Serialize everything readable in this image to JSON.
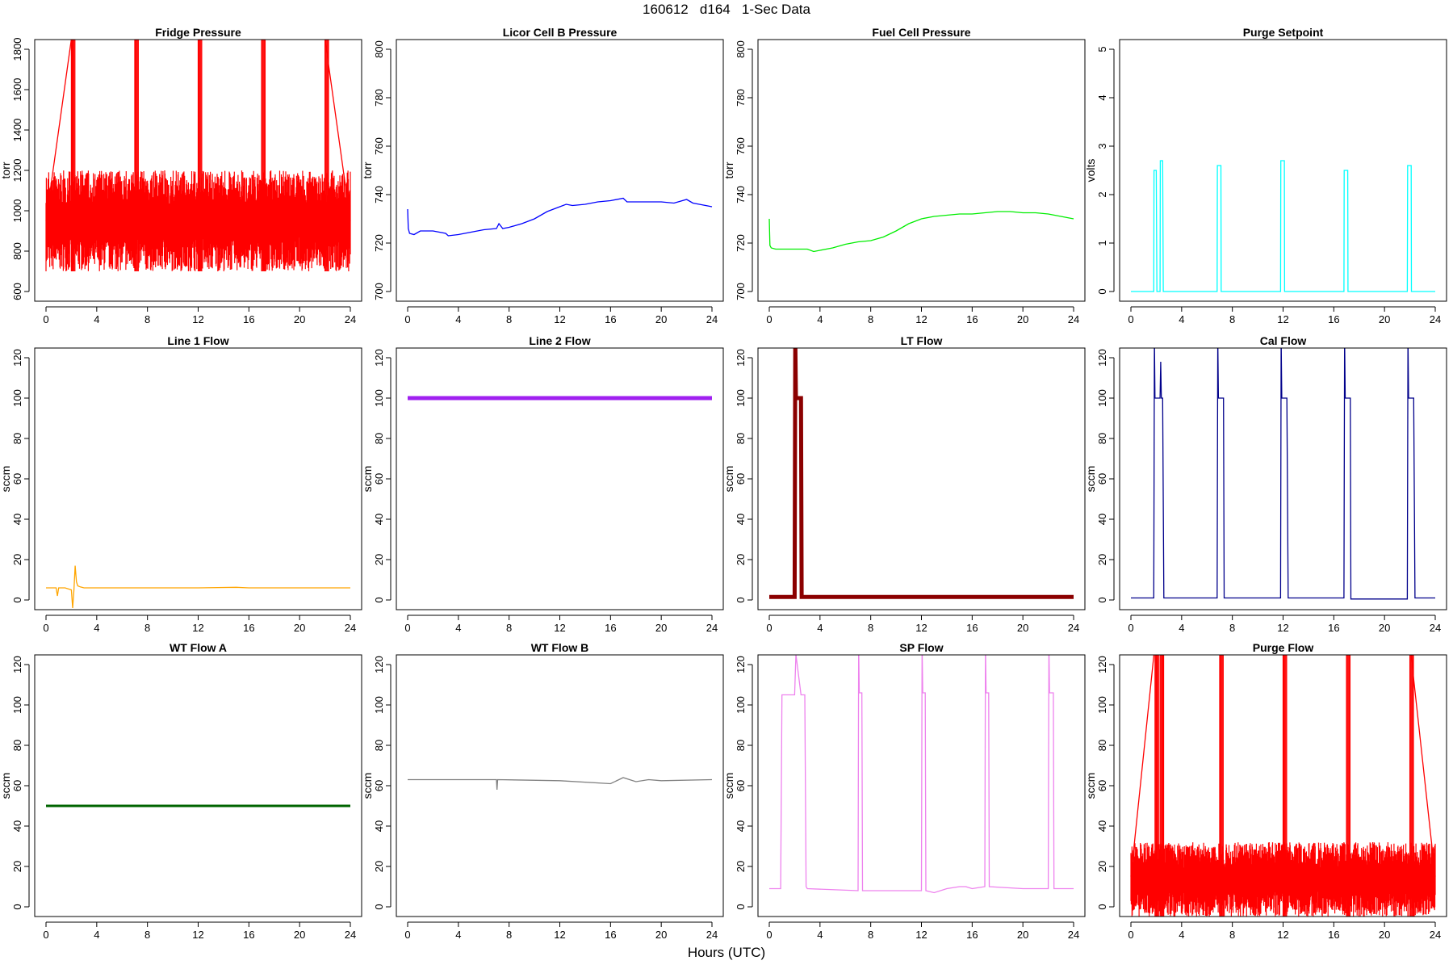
{
  "figure": {
    "title": "160612   d164   1-Sec Data",
    "xlabel": "Hours (UTC)"
  },
  "chart_data": [
    {
      "type": "line",
      "title": "Fridge Pressure",
      "ylabel": "torr",
      "color": "#ff0000",
      "xlim": [
        0,
        24
      ],
      "ylim": [
        600,
        1800
      ],
      "xticks": [
        0,
        4,
        8,
        12,
        16,
        20,
        24
      ],
      "yticks": [
        600,
        800,
        1000,
        1200,
        1400,
        1600,
        1800
      ],
      "pattern": {
        "kind": "noise",
        "low": 700,
        "high": 1200,
        "xs": [
          0,
          24
        ],
        "spikes": {
          "at": [
            2,
            7,
            12,
            17,
            22
          ],
          "peak": 1850
        }
      },
      "series": [
        {
          "x": [
            0,
            2,
            2.3,
            7,
            12,
            17,
            22,
            24
          ],
          "values": [
            950,
            1850,
            1850,
            1850,
            1850,
            1850,
            1850,
            950
          ]
        }
      ]
    },
    {
      "type": "line",
      "title": "Licor Cell B Pressure",
      "ylabel": "torr",
      "color": "#0000ff",
      "xlim": [
        0,
        24
      ],
      "ylim": [
        700,
        800
      ],
      "xticks": [
        0,
        4,
        8,
        12,
        16,
        20,
        24
      ],
      "yticks": [
        700,
        720,
        740,
        760,
        780,
        800
      ],
      "series": [
        {
          "x": [
            0,
            0.05,
            0.15,
            0.5,
            1,
            2,
            3,
            3.2,
            4,
            5,
            6,
            7,
            7.2,
            7.5,
            8,
            9,
            10,
            11,
            12,
            12.5,
            13,
            14,
            15,
            16,
            17,
            17.3,
            18,
            19,
            20,
            21,
            22,
            22.5,
            23,
            24
          ],
          "values": [
            734,
            726,
            724,
            723.5,
            725,
            725,
            724,
            723,
            723.5,
            724.5,
            725.5,
            726,
            728,
            726,
            726.5,
            728,
            730,
            733,
            735,
            736,
            735.5,
            736,
            737,
            737.5,
            738.5,
            737,
            737,
            737,
            737,
            736.5,
            738,
            736.5,
            736,
            735
          ]
        }
      ]
    },
    {
      "type": "line",
      "title": "Fuel Cell Pressure",
      "ylabel": "torr",
      "color": "#00ee00",
      "xlim": [
        0,
        24
      ],
      "ylim": [
        700,
        800
      ],
      "xticks": [
        0,
        4,
        8,
        12,
        16,
        20,
        24
      ],
      "yticks": [
        700,
        720,
        740,
        760,
        780,
        800
      ],
      "series": [
        {
          "x": [
            0,
            0.05,
            0.15,
            0.5,
            1,
            2,
            3,
            3.5,
            4,
            5,
            6,
            7,
            8,
            9,
            10,
            11,
            12,
            13,
            14,
            15,
            16,
            17,
            18,
            19,
            20,
            21,
            22,
            23,
            24
          ],
          "values": [
            730,
            719,
            718,
            717.5,
            717.5,
            717.5,
            717.5,
            716.5,
            717,
            718,
            719.5,
            720.5,
            721,
            722.5,
            725,
            728,
            730,
            731,
            731.5,
            732,
            732,
            732.5,
            733,
            733,
            732.5,
            732.5,
            732,
            731,
            730
          ]
        }
      ]
    },
    {
      "type": "line",
      "title": "Purge Setpoint",
      "ylabel": "volts",
      "color": "#00ffff",
      "xlim": [
        0,
        24
      ],
      "ylim": [
        0,
        5
      ],
      "xticks": [
        0,
        4,
        8,
        12,
        16,
        20,
        24
      ],
      "yticks": [
        0,
        1,
        2,
        3,
        4,
        5
      ],
      "series": [
        {
          "x": [
            0,
            1.8,
            1.82,
            2.0,
            2.05,
            2.3,
            2.32,
            2.5,
            2.55,
            6.8,
            6.82,
            7.1,
            7.12,
            11.8,
            11.82,
            12.1,
            12.12,
            16.8,
            16.82,
            17.1,
            17.12,
            21.8,
            21.82,
            22.1,
            22.12,
            24
          ],
          "values": [
            0,
            0,
            2.5,
            2.5,
            0,
            0,
            2.7,
            2.7,
            0,
            0,
            2.6,
            2.6,
            0,
            0,
            2.7,
            2.7,
            0,
            0,
            2.5,
            2.5,
            0,
            0,
            2.6,
            2.6,
            0,
            0
          ]
        }
      ]
    },
    {
      "type": "line",
      "title": "Line 1 Flow",
      "ylabel": "sccm",
      "color": "#ffa500",
      "xlim": [
        0,
        24
      ],
      "ylim": [
        0,
        120
      ],
      "xticks": [
        0,
        4,
        8,
        12,
        16,
        20,
        24
      ],
      "yticks": [
        0,
        20,
        40,
        60,
        80,
        100,
        120
      ],
      "series": [
        {
          "x": [
            0,
            0.8,
            0.9,
            1.0,
            1.5,
            2.0,
            2.1,
            2.2,
            2.3,
            2.4,
            2.5,
            2.7,
            3,
            4,
            8,
            12,
            15,
            16,
            20,
            24
          ],
          "values": [
            6,
            6,
            2,
            6,
            6,
            5,
            -4,
            5,
            17,
            9,
            7,
            6.5,
            6,
            6,
            6,
            6,
            6.3,
            6,
            6,
            6
          ]
        }
      ]
    },
    {
      "type": "line",
      "title": "Line 2 Flow",
      "ylabel": "sccm",
      "color": "#a020f0",
      "xlim": [
        0,
        24
      ],
      "ylim": [
        0,
        120
      ],
      "xticks": [
        0,
        4,
        8,
        12,
        16,
        20,
        24
      ],
      "yticks": [
        0,
        20,
        40,
        60,
        80,
        100,
        120
      ],
      "series": [
        {
          "x": [
            0,
            24
          ],
          "values": [
            100,
            100
          ]
        }
      ]
    },
    {
      "type": "line",
      "title": "LT Flow",
      "ylabel": "sccm",
      "color": "#8b0000",
      "xlim": [
        0,
        24
      ],
      "ylim": [
        0,
        120
      ],
      "xticks": [
        0,
        4,
        8,
        12,
        16,
        20,
        24
      ],
      "yticks": [
        0,
        20,
        40,
        60,
        80,
        100,
        120
      ],
      "series": [
        {
          "x": [
            0,
            2.0,
            2.05,
            2.1,
            2.15,
            2.5,
            2.55,
            24
          ],
          "values": [
            1.5,
            1.5,
            130,
            100,
            100,
            100,
            1.5,
            1.5
          ]
        }
      ]
    },
    {
      "type": "line",
      "title": "Cal Flow",
      "ylabel": "sccm",
      "color": "#00008b",
      "xlim": [
        0,
        24
      ],
      "ylim": [
        0,
        120
      ],
      "xticks": [
        0,
        4,
        8,
        12,
        16,
        20,
        24
      ],
      "yticks": [
        0,
        20,
        40,
        60,
        80,
        100,
        120
      ],
      "series": [
        {
          "x": [
            0,
            1.8,
            1.85,
            1.9,
            2.3,
            2.35,
            2.4,
            2.5,
            2.6,
            6.8,
            6.85,
            6.9,
            7.3,
            7.35,
            11.8,
            11.85,
            11.9,
            12.3,
            12.4,
            16.8,
            16.85,
            16.9,
            17.3,
            17.35,
            21.8,
            21.85,
            21.9,
            22.3,
            22.4,
            24
          ],
          "values": [
            1,
            1,
            130,
            100,
            100,
            118,
            100,
            100,
            1,
            1,
            130,
            100,
            100,
            1,
            1,
            130,
            100,
            100,
            1,
            1,
            130,
            100,
            100,
            0.5,
            0.5,
            130,
            100,
            100,
            1,
            1
          ]
        }
      ]
    },
    {
      "type": "line",
      "title": "WT Flow A",
      "ylabel": "sccm",
      "color": "#006400",
      "xlim": [
        0,
        24
      ],
      "ylim": [
        0,
        120
      ],
      "xticks": [
        0,
        4,
        8,
        12,
        16,
        20,
        24
      ],
      "yticks": [
        0,
        20,
        40,
        60,
        80,
        100,
        120
      ],
      "series": [
        {
          "x": [
            0,
            24
          ],
          "values": [
            50,
            50
          ]
        }
      ]
    },
    {
      "type": "line",
      "title": "WT Flow B",
      "ylabel": "sccm",
      "color": "#808080",
      "xlim": [
        0,
        24
      ],
      "ylim": [
        0,
        120
      ],
      "xticks": [
        0,
        4,
        8,
        12,
        16,
        20,
        24
      ],
      "yticks": [
        0,
        20,
        40,
        60,
        80,
        100,
        120
      ],
      "series": [
        {
          "x": [
            0,
            4,
            7,
            7.05,
            7.1,
            12,
            16,
            17,
            18,
            19,
            20,
            24
          ],
          "values": [
            63,
            63,
            63,
            58,
            63,
            62.5,
            61,
            64,
            62,
            63,
            62.5,
            63
          ]
        }
      ]
    },
    {
      "type": "line",
      "title": "SP Flow",
      "ylabel": "sccm",
      "color": "#ee82ee",
      "xlim": [
        0,
        24
      ],
      "ylim": [
        0,
        120
      ],
      "xticks": [
        0,
        4,
        8,
        12,
        16,
        20,
        24
      ],
      "yticks": [
        0,
        20,
        40,
        60,
        80,
        100,
        120
      ],
      "series": [
        {
          "x": [
            0,
            0.9,
            1.0,
            1.1,
            2.0,
            2.1,
            2.5,
            2.8,
            2.9,
            3.0,
            7.0,
            7.05,
            7.1,
            7.3,
            7.35,
            12.0,
            12.05,
            12.1,
            12.3,
            12.35,
            13,
            14,
            15,
            15.5,
            16,
            17.0,
            17.05,
            17.1,
            17.3,
            17.35,
            20,
            22.0,
            22.05,
            22.1,
            22.4,
            22.45,
            24
          ],
          "values": [
            9,
            9,
            105,
            105,
            105,
            125,
            105,
            105,
            10,
            9,
            8,
            130,
            106,
            106,
            8,
            8,
            130,
            106,
            106,
            8,
            7,
            9,
            10,
            10,
            9,
            10,
            130,
            106,
            106,
            10,
            9,
            9,
            130,
            106,
            106,
            9,
            9
          ]
        }
      ]
    },
    {
      "type": "line",
      "title": "Purge Flow",
      "ylabel": "sccm",
      "color": "#ff0000",
      "xlim": [
        0,
        24
      ],
      "ylim": [
        0,
        120
      ],
      "xticks": [
        0,
        4,
        8,
        12,
        16,
        20,
        24
      ],
      "yticks": [
        0,
        20,
        40,
        60,
        80,
        100,
        120
      ],
      "pattern": {
        "kind": "noise",
        "low": -5,
        "high": 32,
        "xs": [
          0,
          24
        ],
        "spikes": {
          "at": [
            1.9,
            2.3,
            7,
            12,
            17,
            22
          ],
          "peak": 130
        }
      },
      "series": [
        {
          "x": [
            0,
            1.9,
            2.3,
            7,
            12,
            17,
            22,
            24
          ],
          "values": [
            15,
            130,
            130,
            130,
            130,
            130,
            130,
            15
          ]
        }
      ]
    }
  ]
}
